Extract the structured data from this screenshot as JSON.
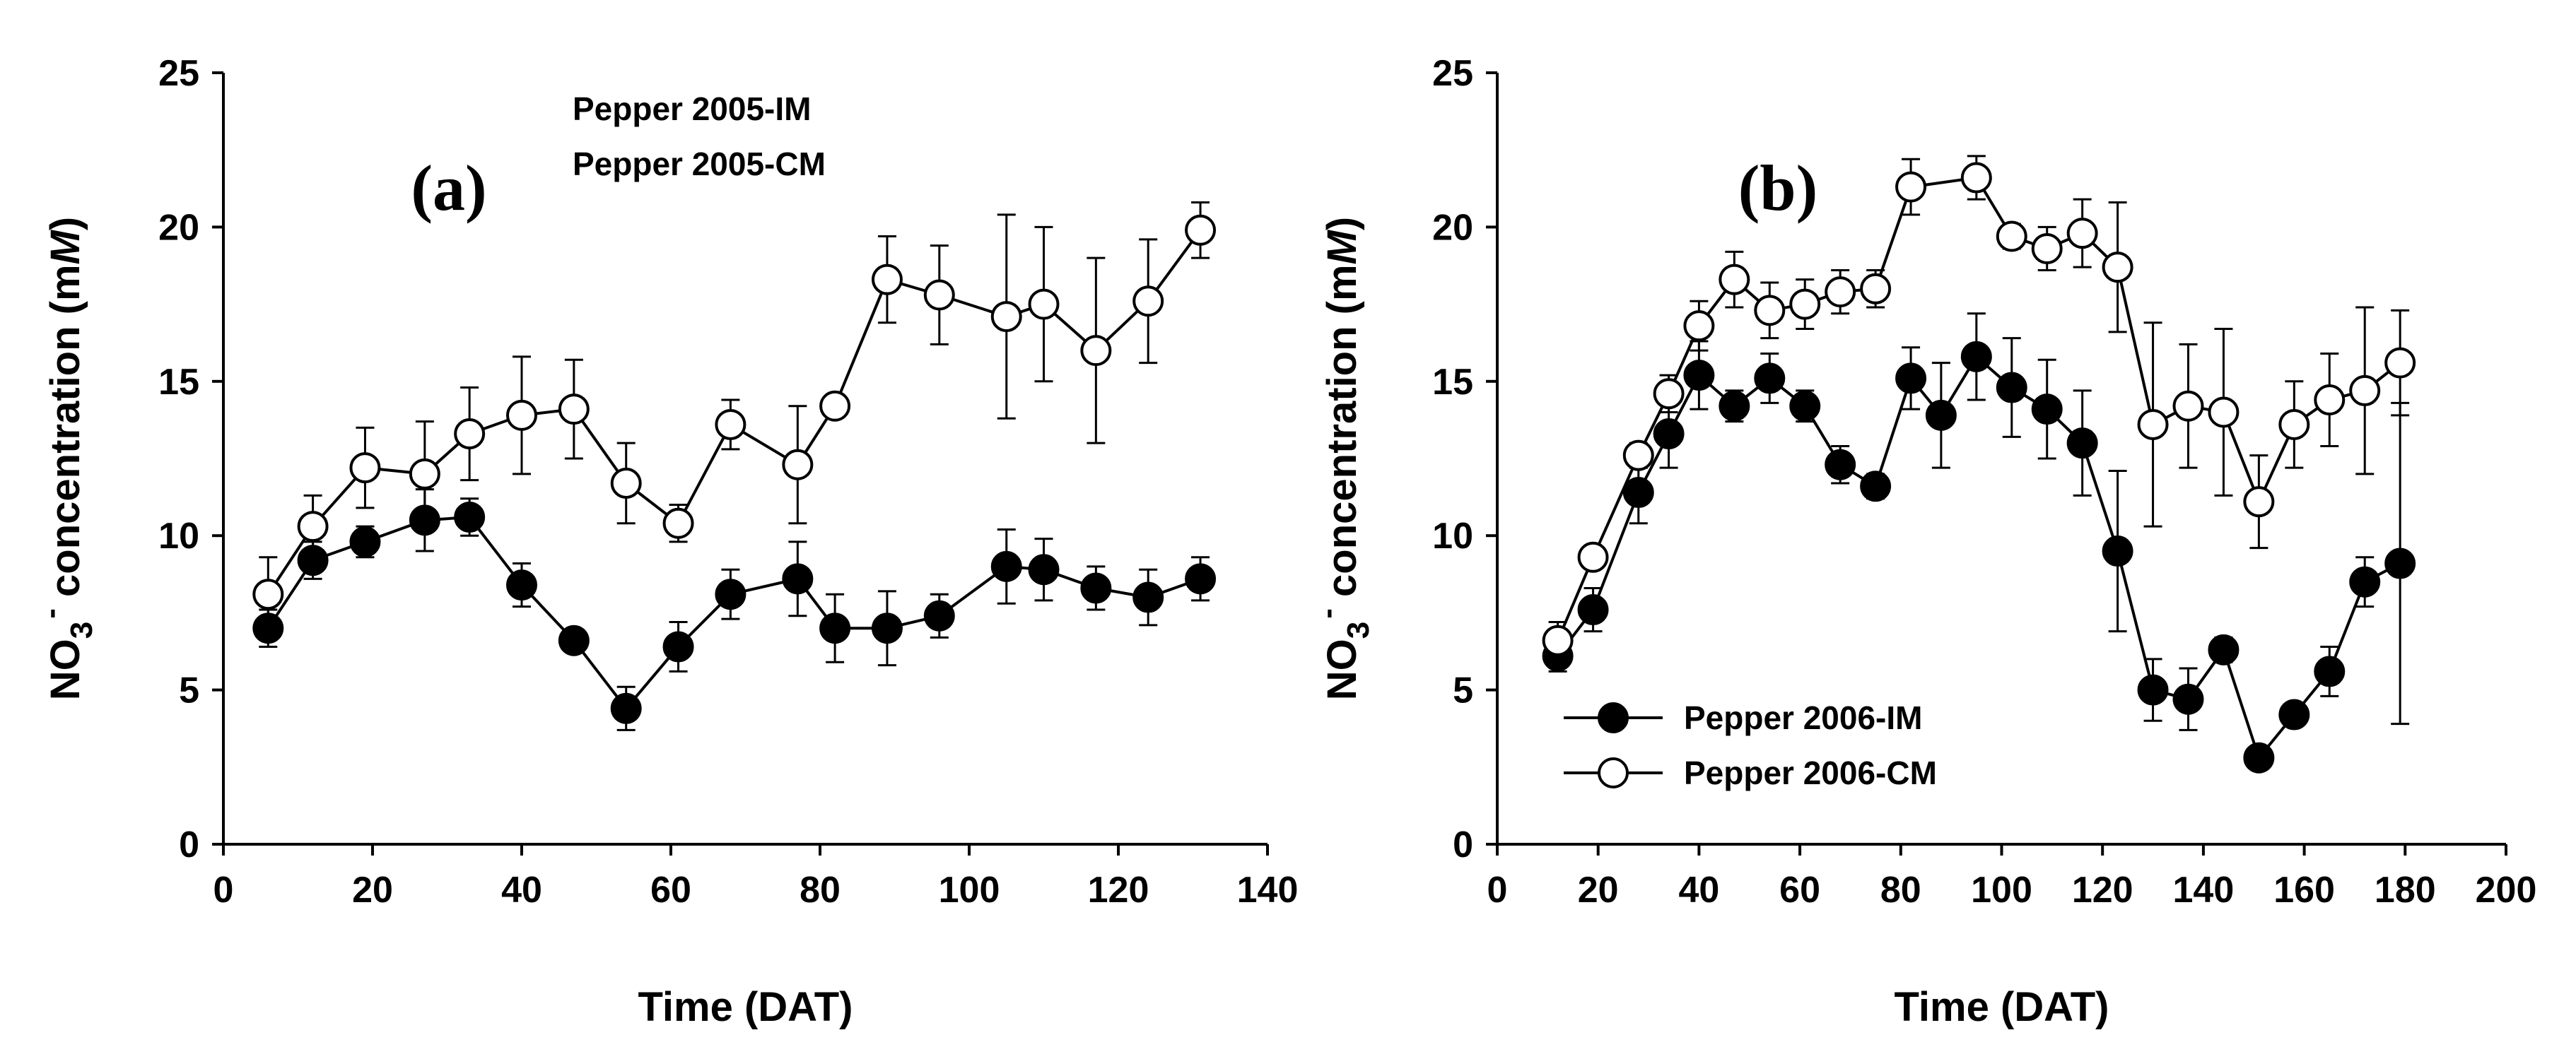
{
  "chart_data": [
    {
      "type": "scatter",
      "panel_label": "(a)",
      "xlabel": "Time (DAT)",
      "ylabel_parts": [
        "NO",
        "3",
        "-",
        " concentration (m",
        "M",
        ")"
      ],
      "xlim": [
        0,
        140
      ],
      "ylim": [
        0,
        25
      ],
      "xticks": [
        0,
        20,
        40,
        60,
        80,
        100,
        120,
        140
      ],
      "yticks": [
        0,
        5,
        10,
        15,
        20,
        25
      ],
      "legend_placement": "top-center",
      "series": [
        {
          "name": "Pepper 2005-IM",
          "marker": "filled-circle",
          "x": [
            6,
            12,
            19,
            27,
            33,
            40,
            47,
            54,
            61,
            68,
            77,
            82,
            89,
            96,
            105,
            110,
            117,
            124,
            131
          ],
          "y": [
            7.0,
            9.2,
            9.8,
            10.5,
            10.6,
            8.4,
            6.6,
            4.4,
            6.4,
            8.1,
            8.6,
            7.0,
            7.0,
            7.4,
            9.0,
            8.9,
            8.3,
            8.0,
            8.6
          ],
          "err": [
            0.6,
            0.6,
            0.5,
            1.0,
            0.6,
            0.7,
            0.3,
            0.7,
            0.8,
            0.8,
            1.2,
            1.1,
            1.2,
            0.7,
            1.2,
            1.0,
            0.7,
            0.9,
            0.7
          ]
        },
        {
          "name": "Pepper 2005-CM",
          "marker": "open-circle",
          "x": [
            6,
            12,
            19,
            27,
            33,
            40,
            47,
            54,
            61,
            68,
            77,
            82,
            89,
            96,
            105,
            110,
            117,
            124,
            131
          ],
          "y": [
            8.1,
            10.3,
            12.2,
            12.0,
            13.3,
            13.9,
            14.1,
            11.7,
            10.4,
            13.6,
            12.3,
            14.2,
            18.3,
            17.8,
            17.1,
            17.5,
            16.0,
            17.6,
            19.9
          ],
          "err": [
            1.2,
            1.0,
            1.3,
            1.7,
            1.5,
            1.9,
            1.6,
            1.3,
            0.6,
            0.8,
            1.9,
            0.3,
            1.4,
            1.6,
            3.3,
            2.5,
            3.0,
            2.0,
            0.9
          ]
        }
      ]
    },
    {
      "type": "scatter",
      "panel_label": "(b)",
      "xlabel": "Time (DAT)",
      "ylabel_parts": [
        "NO",
        "3",
        "-",
        " concentration (m",
        "M",
        ")"
      ],
      "xlim": [
        0,
        200
      ],
      "ylim": [
        0,
        25
      ],
      "xticks": [
        0,
        20,
        40,
        60,
        80,
        100,
        120,
        140,
        160,
        180,
        200
      ],
      "yticks": [
        0,
        5,
        10,
        15,
        20,
        25
      ],
      "legend_placement": "bottom-left",
      "series": [
        {
          "name": "Pepper 2006-IM",
          "marker": "filled-circle",
          "x": [
            12,
            19,
            28,
            34,
            40,
            47,
            54,
            61,
            68,
            75,
            82,
            88,
            95,
            102,
            109,
            116,
            123,
            130,
            137,
            144,
            151,
            158,
            165,
            172,
            179
          ],
          "y": [
            6.1,
            7.6,
            11.4,
            13.3,
            15.2,
            14.2,
            15.1,
            14.2,
            12.3,
            11.6,
            15.1,
            13.9,
            15.8,
            14.8,
            14.1,
            13.0,
            9.5,
            5.0,
            4.7,
            6.3,
            2.8,
            4.2,
            5.6,
            8.5,
            9.1
          ],
          "err": [
            0.5,
            0.7,
            1.0,
            1.1,
            1.1,
            0.5,
            0.8,
            0.5,
            0.6,
            0.4,
            1.0,
            1.7,
            1.4,
            1.6,
            1.6,
            1.7,
            2.6,
            1.0,
            1.0,
            0.4,
            0.3,
            0.3,
            0.8,
            0.8,
            5.2
          ]
        },
        {
          "name": "Pepper 2006-CM",
          "marker": "open-circle",
          "x": [
            12,
            19,
            28,
            34,
            40,
            47,
            54,
            61,
            68,
            75,
            82,
            95,
            102,
            109,
            116,
            123,
            130,
            137,
            144,
            151,
            158,
            165,
            172,
            179
          ],
          "y": [
            6.6,
            9.3,
            12.6,
            14.6,
            16.8,
            18.3,
            17.3,
            17.5,
            17.9,
            18.0,
            21.3,
            21.6,
            19.7,
            19.3,
            19.8,
            18.7,
            13.6,
            14.2,
            14.0,
            11.1,
            13.6,
            14.4,
            14.7,
            15.6
          ],
          "err": [
            0.6,
            0.3,
            0.4,
            0.6,
            0.8,
            0.9,
            0.9,
            0.8,
            0.7,
            0.6,
            0.9,
            0.7,
            0.4,
            0.7,
            1.1,
            2.1,
            3.3,
            2.0,
            2.7,
            1.5,
            1.4,
            1.5,
            2.7,
            1.7
          ]
        }
      ]
    }
  ]
}
